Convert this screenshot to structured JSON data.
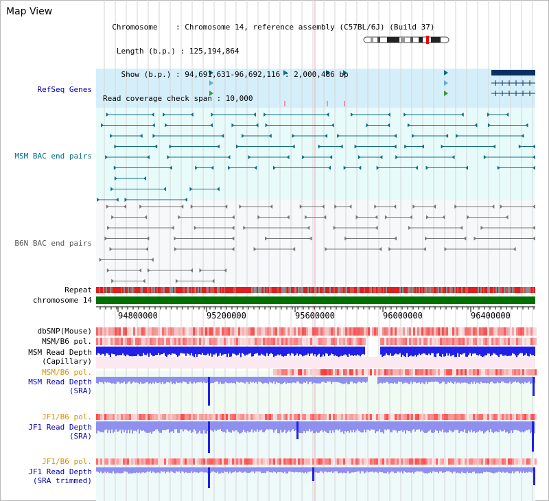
{
  "header": {
    "title": "Map View",
    "info_lines": [
      "  Chromosome    : Chromosome 14, reference assembly (C57BL/6J) (Build 37)",
      "   Length (b.p.) : 125,194,864",
      "    Show (b.p.) : 94,691,631-96,692,116 : 2,000,486 bp",
      "Read coverage check span : 10,000"
    ]
  },
  "tracks": {
    "refseq": "RefSeq Genes",
    "msm_bac": "MSM BAC end pairs",
    "b6n_bac": "B6N BAC end pairs",
    "repeat": "Repeat",
    "chromosome": "chromosome 14",
    "dbsnp": "dbSNP(Mouse)",
    "msm_b6_pol": "MSM/B6 pol.",
    "msm_depth_cap_1": "MSM Read Depth",
    "msm_depth_cap_2": "(Capillary)",
    "msm_b6_pol2": "MSM/B6 pol.",
    "msm_depth_sra_1": "MSM Read Depth",
    "msm_depth_sra_2": "(SRA)",
    "jf1_pol": "JF1/B6 pol.",
    "jf1_depth_1": "JF1 Read Depth",
    "jf1_depth_2": "(SRA)",
    "jf1_pol2": "JF1/B6 pol.",
    "jf1_trim_1": "JF1 Read Depth",
    "jf1_trim_2": "(SRA trimmed)"
  },
  "axis": {
    "ticks": [
      "94800000",
      "95200000",
      "95600000",
      "96000000",
      "96400000"
    ]
  },
  "colors": {
    "refseq_bg": "#d5effa",
    "msm_bg": "#e8fbfb",
    "b6n_bg": "#f6f8fa",
    "lower_bg": "#eef9f9",
    "gene_dark": "#0a2f63",
    "bac_teal": "#0d6e83",
    "bac_gray": "#777777",
    "chrom_green": "#007000",
    "depth_blue": "#2020e8",
    "depth_light": "#8f8ff0",
    "pol_red": "#ee2020"
  }
}
